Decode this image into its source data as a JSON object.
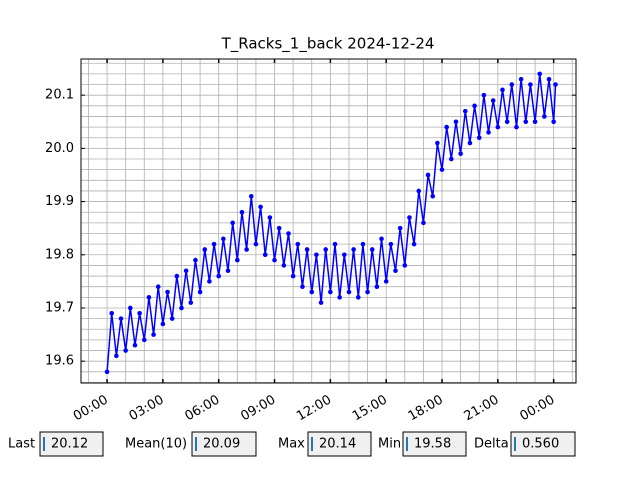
{
  "chart_data": {
    "type": "line",
    "title": "T_Racks_1_back 2024-12-24",
    "color": "#0000ff",
    "marker": "circle",
    "grid": true,
    "x": [
      0,
      0.25,
      0.5,
      0.75,
      1,
      1.25,
      1.5,
      1.75,
      2,
      2.25,
      2.5,
      2.75,
      3,
      3.25,
      3.5,
      3.75,
      4,
      4.25,
      4.5,
      4.75,
      5,
      5.25,
      5.5,
      5.75,
      6,
      6.25,
      6.5,
      6.75,
      7,
      7.25,
      7.5,
      7.75,
      8,
      8.25,
      8.5,
      8.75,
      9,
      9.25,
      9.5,
      9.75,
      10,
      10.25,
      10.5,
      10.75,
      11,
      11.25,
      11.5,
      11.75,
      12,
      12.25,
      12.5,
      12.75,
      13,
      13.25,
      13.5,
      13.75,
      14,
      14.25,
      14.5,
      14.75,
      15,
      15.25,
      15.5,
      15.75,
      16,
      16.25,
      16.5,
      16.75,
      17,
      17.25,
      17.5,
      17.75,
      18,
      18.25,
      18.5,
      18.75,
      19,
      19.25,
      19.5,
      19.75,
      20,
      20.25,
      20.5,
      20.75,
      21,
      21.25,
      21.5,
      21.75,
      22,
      22.25,
      22.5,
      22.75,
      23,
      23.25,
      23.5,
      23.75,
      24,
      24.1
    ],
    "values": [
      19.58,
      19.69,
      19.61,
      19.68,
      19.62,
      19.7,
      19.63,
      19.69,
      19.64,
      19.72,
      19.65,
      19.74,
      19.67,
      19.73,
      19.68,
      19.76,
      19.7,
      19.77,
      19.71,
      19.79,
      19.73,
      19.81,
      19.75,
      19.82,
      19.76,
      19.83,
      19.77,
      19.86,
      19.79,
      19.88,
      19.81,
      19.91,
      19.82,
      19.89,
      19.8,
      19.87,
      19.79,
      19.85,
      19.78,
      19.84,
      19.76,
      19.82,
      19.74,
      19.81,
      19.73,
      19.8,
      19.71,
      19.81,
      19.73,
      19.82,
      19.72,
      19.8,
      19.73,
      19.81,
      19.72,
      19.82,
      19.73,
      19.81,
      19.74,
      19.83,
      19.75,
      19.82,
      19.77,
      19.85,
      19.78,
      19.87,
      19.82,
      19.92,
      19.86,
      19.95,
      19.91,
      20.01,
      19.96,
      20.04,
      19.98,
      20.05,
      19.99,
      20.07,
      20.01,
      20.08,
      20.02,
      20.1,
      20.03,
      20.09,
      20.04,
      20.11,
      20.05,
      20.12,
      20.04,
      20.13,
      20.05,
      20.12,
      20.05,
      20.14,
      20.06,
      20.13,
      20.05,
      20.12
    ],
    "xlim": [
      -1.4,
      25.2
    ],
    "ylim": [
      19.559,
      20.168
    ],
    "xticks": [
      {
        "value": 0,
        "label": "00:00"
      },
      {
        "value": 3,
        "label": "03:00"
      },
      {
        "value": 6,
        "label": "06:00"
      },
      {
        "value": 9,
        "label": "09:00"
      },
      {
        "value": 12,
        "label": "12:00"
      },
      {
        "value": 15,
        "label": "15:00"
      },
      {
        "value": 18,
        "label": "18:00"
      },
      {
        "value": 21,
        "label": "21:00"
      },
      {
        "value": 24,
        "label": "00:00"
      }
    ],
    "yticks": [
      19.6,
      19.7,
      19.8,
      19.9,
      {
        "value": 20,
        "label": "20.0"
      },
      20.1
    ],
    "x_minor_ticks": [
      -1,
      0,
      1,
      2,
      3,
      4,
      5,
      6,
      7,
      8,
      9,
      10,
      11,
      12,
      13,
      14,
      15,
      16,
      17,
      18,
      19,
      20,
      21,
      22,
      23,
      24,
      25
    ],
    "y_minor_ticks": [
      19.56,
      19.58,
      19.6,
      19.62,
      19.64,
      19.66,
      19.68,
      19.7,
      19.72,
      19.74,
      19.76,
      19.78,
      19.8,
      19.82,
      19.84,
      19.86,
      19.88,
      19.9,
      19.92,
      19.94,
      19.96,
      19.98,
      20.0,
      20.02,
      20.04,
      20.06,
      20.08,
      20.1,
      20.12,
      20.14,
      20.16
    ]
  },
  "stats": [
    {
      "label": "Last",
      "value": "20.12"
    },
    {
      "label": "Mean(10)",
      "value": "20.09"
    },
    {
      "label": "Max",
      "value": "20.14"
    },
    {
      "label": "Min",
      "value": "19.58"
    },
    {
      "label": "Delta",
      "value": "0.560"
    }
  ]
}
